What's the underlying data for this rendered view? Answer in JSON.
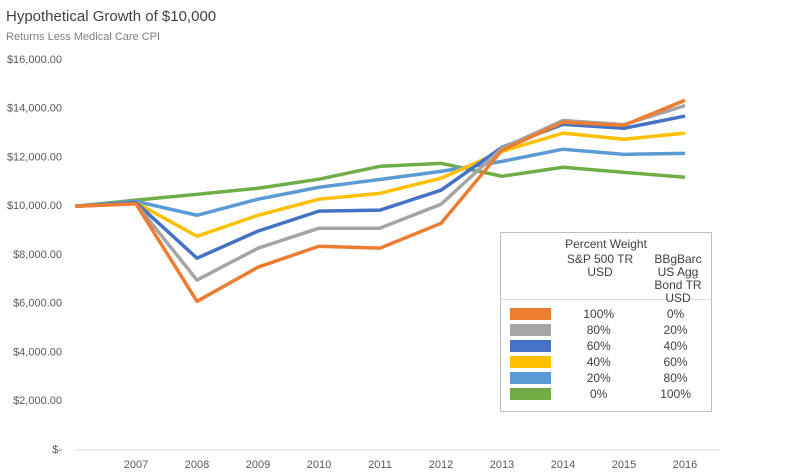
{
  "chart_data": {
    "type": "line",
    "title": "Hypothetical Growth of $10,000",
    "subtitle": "Returns Less Medical Care CPI",
    "categories": [
      null,
      "2007",
      "2008",
      "2009",
      "2010",
      "2011",
      "2012",
      "2013",
      "2014",
      "2015",
      "2016"
    ],
    "ylim": [
      0,
      16000
    ],
    "yticks": [
      {
        "value": 0,
        "label": "$-"
      },
      {
        "value": 2000,
        "label": "$2,000.00"
      },
      {
        "value": 4000,
        "label": "$4,000.00"
      },
      {
        "value": 6000,
        "label": "$6,000.00"
      },
      {
        "value": 8000,
        "label": "$8,000.00"
      },
      {
        "value": 10000,
        "label": "$10,000.00"
      },
      {
        "value": 12000,
        "label": "$12,000.00"
      },
      {
        "value": 14000,
        "label": "$14,000.00"
      },
      {
        "value": 16000,
        "label": "$16,000.00"
      }
    ],
    "grid": false,
    "legend_title": "Percent Weight",
    "legend_columns": [
      "S&P 500 TR USD",
      "BBgBarc US Agg Bond TR USD"
    ],
    "series": [
      {
        "weights": [
          "100%",
          "0%"
        ],
        "color": "#ED7D31",
        "values": [
          10000,
          10100,
          6100,
          7500,
          8360,
          8280,
          9300,
          12300,
          13450,
          13320,
          14350
        ]
      },
      {
        "weights": [
          "80%",
          "20%"
        ],
        "color": "#A5A5A5",
        "values": [
          10000,
          10100,
          6970,
          8280,
          9100,
          9100,
          10080,
          12380,
          13520,
          13350,
          14130
        ]
      },
      {
        "weights": [
          "60%",
          "40%"
        ],
        "color": "#4472C4",
        "values": [
          10000,
          10150,
          7870,
          8980,
          9800,
          9840,
          10660,
          12420,
          13360,
          13200,
          13700
        ]
      },
      {
        "weights": [
          "40%",
          "60%"
        ],
        "color": "#FFC000",
        "values": [
          10000,
          10150,
          8770,
          9630,
          10290,
          10530,
          11150,
          12250,
          13000,
          12750,
          13000
        ]
      },
      {
        "weights": [
          "20%",
          "80%"
        ],
        "color": "#5B9BD5",
        "values": [
          10000,
          10200,
          9630,
          10290,
          10780,
          11100,
          11430,
          11840,
          12340,
          12130,
          12170
        ]
      },
      {
        "weights": [
          "0%",
          "100%"
        ],
        "color": "#70AD47",
        "values": [
          10000,
          10250,
          10490,
          10740,
          11110,
          11640,
          11760,
          11230,
          11600,
          11390,
          11190
        ]
      }
    ]
  }
}
